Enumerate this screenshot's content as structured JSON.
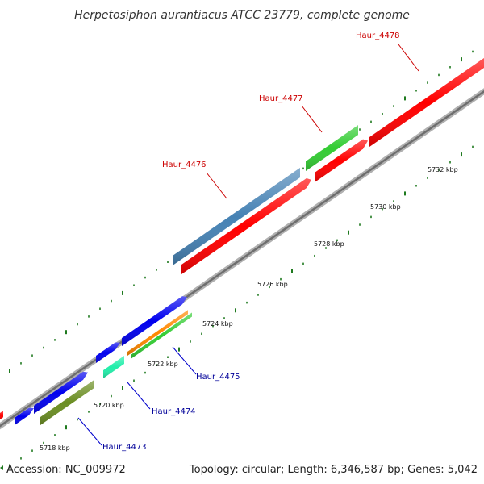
{
  "title": "Herpetosiphon aurantiacus ATCC 23779, complete genome",
  "footer": {
    "accession": "Accession: NC_009972",
    "summary": "Topology: circular; Length: 6,346,587 bp; Genes: 5,042"
  },
  "colors": {
    "red": "#ff0000",
    "blue": "#0000ee",
    "steelblue": "#4682b4",
    "green": "#33cc33",
    "olive": "#6b8e23",
    "aquamarine": "#22eeaa",
    "orange": "#ff8800",
    "backbone": "#8a8a8a",
    "tick": "#1f7a1f",
    "label_red": "#cc0000",
    "label_blue": "#000099"
  },
  "ticks": [
    {
      "label": "5718 kbp"
    },
    {
      "label": "5720 kbp"
    },
    {
      "label": "5722 kbp"
    },
    {
      "label": "5724 kbp"
    },
    {
      "label": "5726 kbp"
    },
    {
      "label": "5728 kbp"
    },
    {
      "label": "5730 kbp"
    },
    {
      "label": "5732 kbp"
    }
  ],
  "gene_labels": [
    {
      "id": "haur-4473",
      "text": "Haur_4473"
    },
    {
      "id": "haur-4474",
      "text": "Haur_4474"
    },
    {
      "id": "haur-4475",
      "text": "Haur_4475"
    },
    {
      "id": "haur-4476",
      "text": "Haur_4476"
    },
    {
      "id": "haur-4477",
      "text": "Haur_4477"
    },
    {
      "id": "haur-4478",
      "text": "Haur_4478"
    }
  ]
}
